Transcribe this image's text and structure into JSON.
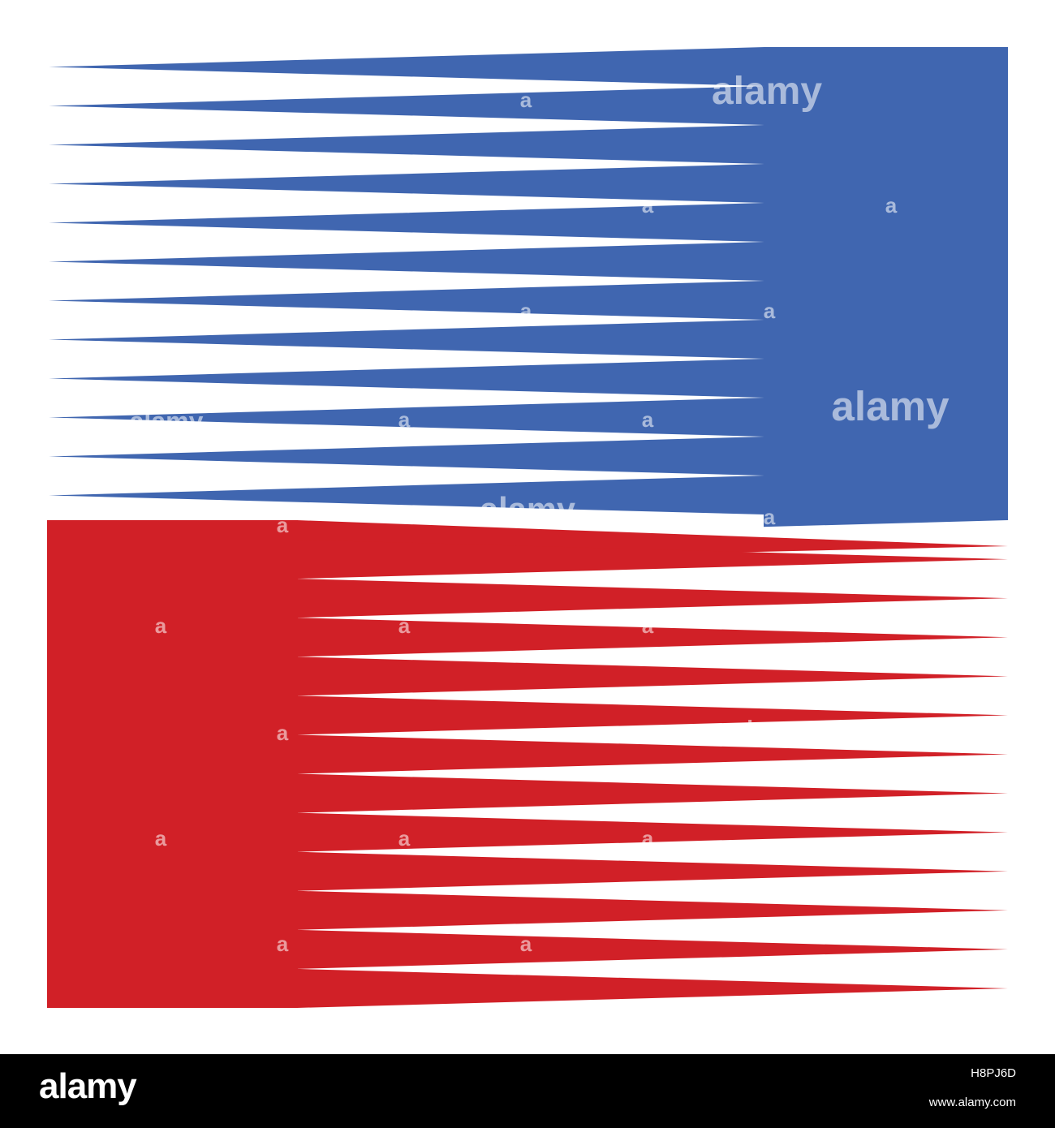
{
  "artwork": {
    "colors": {
      "blue": "#4066b0",
      "red": "#d12027",
      "background": "#ffffff"
    },
    "blue_panel": {
      "spike_count": 12
    },
    "red_panel": {
      "spike_count": 12
    }
  },
  "watermark": {
    "logo_text": "alamy",
    "letter": "a"
  },
  "footer": {
    "logo": "alamy",
    "image_id": "H8PJ6D",
    "url": "www.alamy.com"
  }
}
